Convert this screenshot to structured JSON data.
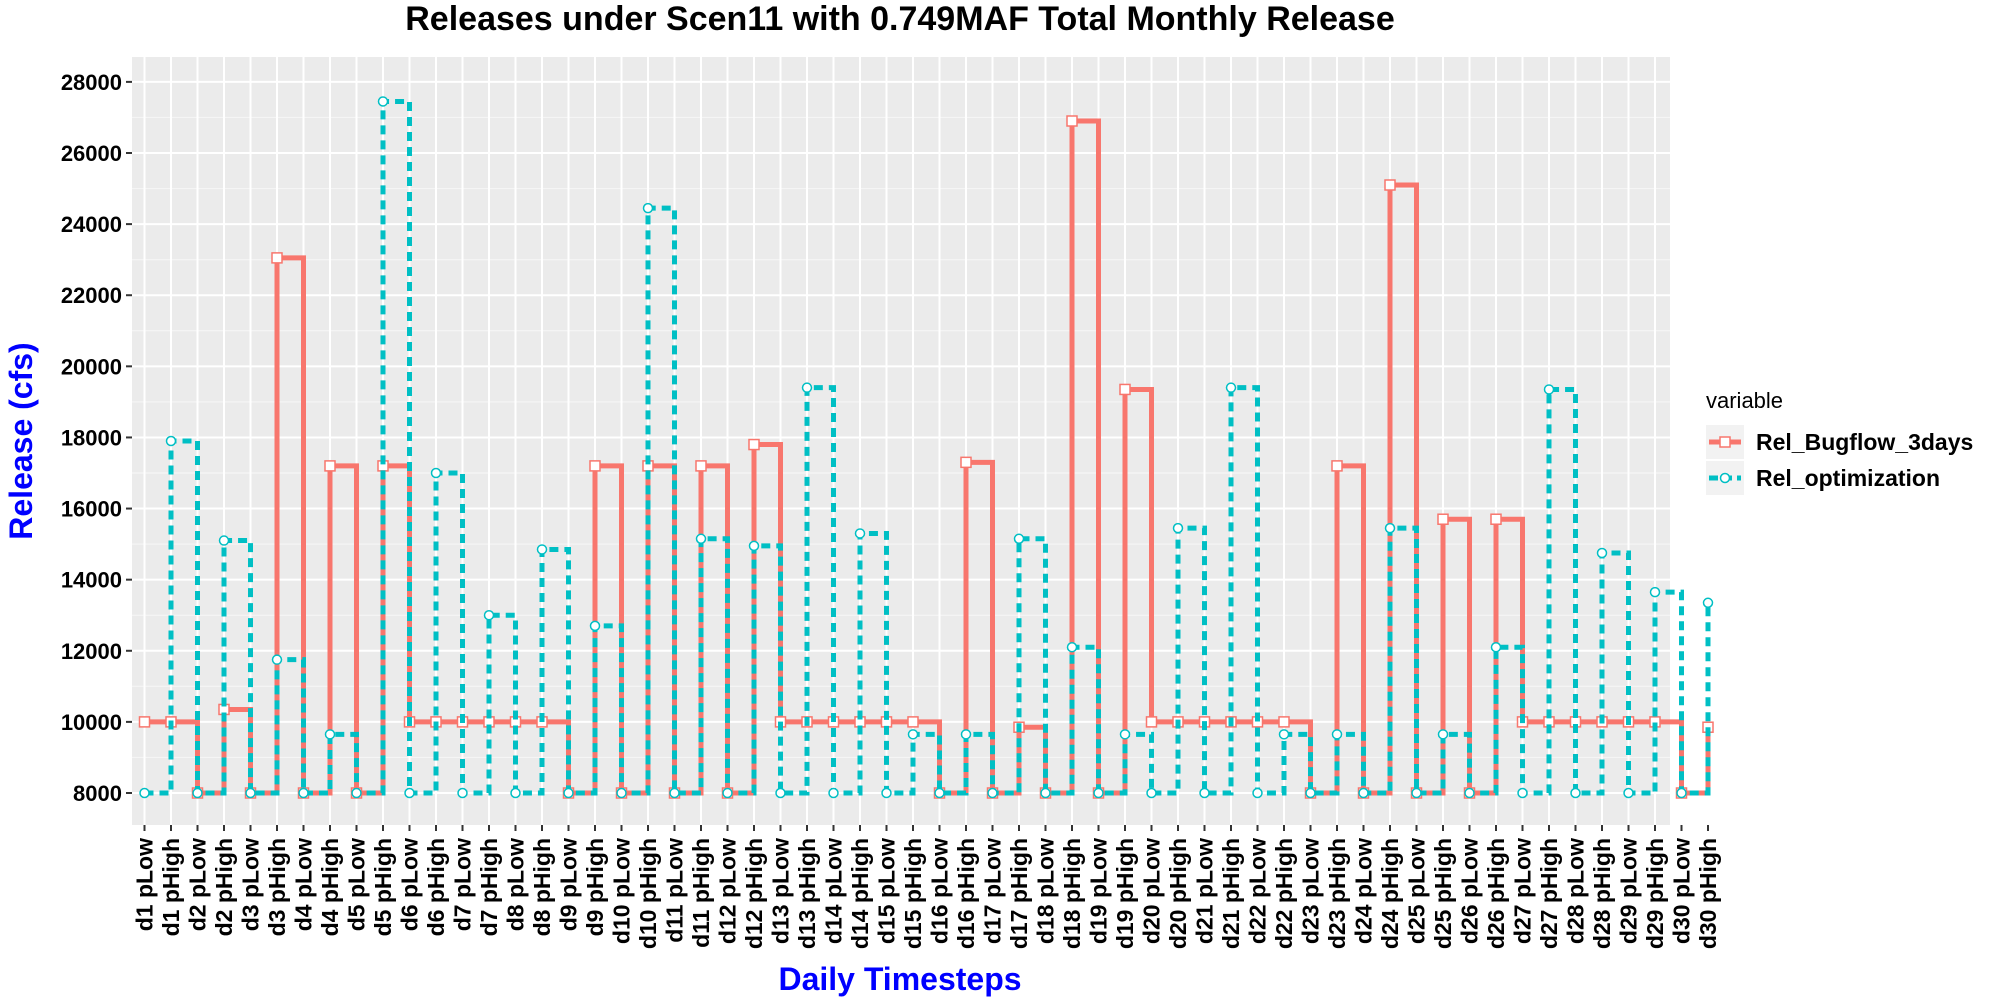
{
  "chart_data": {
    "type": "line",
    "step": true,
    "title": "Releases under Scen11 with 0.749MAF Total Monthly Release",
    "xlabel": "Daily Timesteps",
    "ylabel": "Release (cfs)",
    "label_color": "#0000FF",
    "ylim": [
      7100,
      28700
    ],
    "yticks": [
      8000,
      10000,
      12000,
      14000,
      16000,
      18000,
      20000,
      22000,
      24000,
      26000,
      28000
    ],
    "grid": true,
    "panel_background": "#EBEBEB",
    "legend_title": "variable",
    "legend_position": "right",
    "categories": [
      "d1 pLow",
      "d1 pHigh",
      "d2 pLow",
      "d2 pHigh",
      "d3 pLow",
      "d3 pHigh",
      "d4 pLow",
      "d4 pHigh",
      "d5 pLow",
      "d5 pHigh",
      "d6 pLow",
      "d6 pHigh",
      "d7 pLow",
      "d7 pHigh",
      "d8 pLow",
      "d8 pHigh",
      "d9 pLow",
      "d9 pHigh",
      "d10 pLow",
      "d10 pHigh",
      "d11 pLow",
      "d11 pHigh",
      "d12 pLow",
      "d12 pHigh",
      "d13 pLow",
      "d13 pHigh",
      "d14 pLow",
      "d14 pHigh",
      "d15 pLow",
      "d15 pHigh",
      "d16 pLow",
      "d16 pHigh",
      "d17 pLow",
      "d17 pHigh",
      "d18 pLow",
      "d18 pHigh",
      "d19 pLow",
      "d19 pHigh",
      "d20 pLow",
      "d20 pHigh",
      "d21 pLow",
      "d21 pHigh",
      "d22 pLow",
      "d22 pHigh",
      "d23 pLow",
      "d23 pHigh",
      "d24 pLow",
      "d24 pHigh",
      "d25 pLow",
      "d25 pHigh",
      "d26 pLow",
      "d26 pHigh",
      "d27 pLow",
      "d27 pHigh",
      "d28 pLow",
      "d28 pHigh",
      "d29 pLow",
      "d29 pHigh",
      "d30 pLow",
      "d30 pHigh"
    ],
    "series": [
      {
        "name": "Rel_Bugflow_3days",
        "color": "#F8766D",
        "linestyle": "solid",
        "marker": "square",
        "values": [
          10000,
          10000,
          8000,
          10350,
          8000,
          23050,
          8000,
          17200,
          8000,
          17200,
          10000,
          10000,
          10000,
          10000,
          10000,
          10000,
          8000,
          17200,
          8000,
          17200,
          8000,
          17200,
          8000,
          17800,
          10000,
          10000,
          10000,
          10000,
          10000,
          10000,
          8000,
          17300,
          8000,
          9850,
          8000,
          26900,
          8000,
          19350,
          10000,
          10000,
          10000,
          10000,
          10000,
          10000,
          8000,
          17200,
          8000,
          25100,
          8000,
          15700,
          8000,
          15700,
          10000,
          10000,
          10000,
          10000,
          10000,
          10000,
          8000,
          9850
        ]
      },
      {
        "name": "Rel_optimization",
        "color": "#00BFC4",
        "linestyle": "dashed",
        "marker": "circle",
        "values": [
          8000,
          17900,
          8000,
          15100,
          8000,
          11750,
          8000,
          9650,
          8000,
          27450,
          8000,
          17000,
          8000,
          13000,
          8000,
          14850,
          8000,
          12700,
          8000,
          24450,
          8000,
          15150,
          8000,
          14950,
          8000,
          19400,
          8000,
          15300,
          8000,
          9650,
          8000,
          9650,
          8000,
          15150,
          8000,
          12100,
          8000,
          9650,
          8000,
          15450,
          8000,
          19400,
          8000,
          9650,
          8000,
          9650,
          8000,
          15450,
          8000,
          9650,
          8000,
          12100,
          8000,
          19350,
          8000,
          14750,
          8000,
          13650,
          8000,
          13350
        ]
      }
    ]
  }
}
